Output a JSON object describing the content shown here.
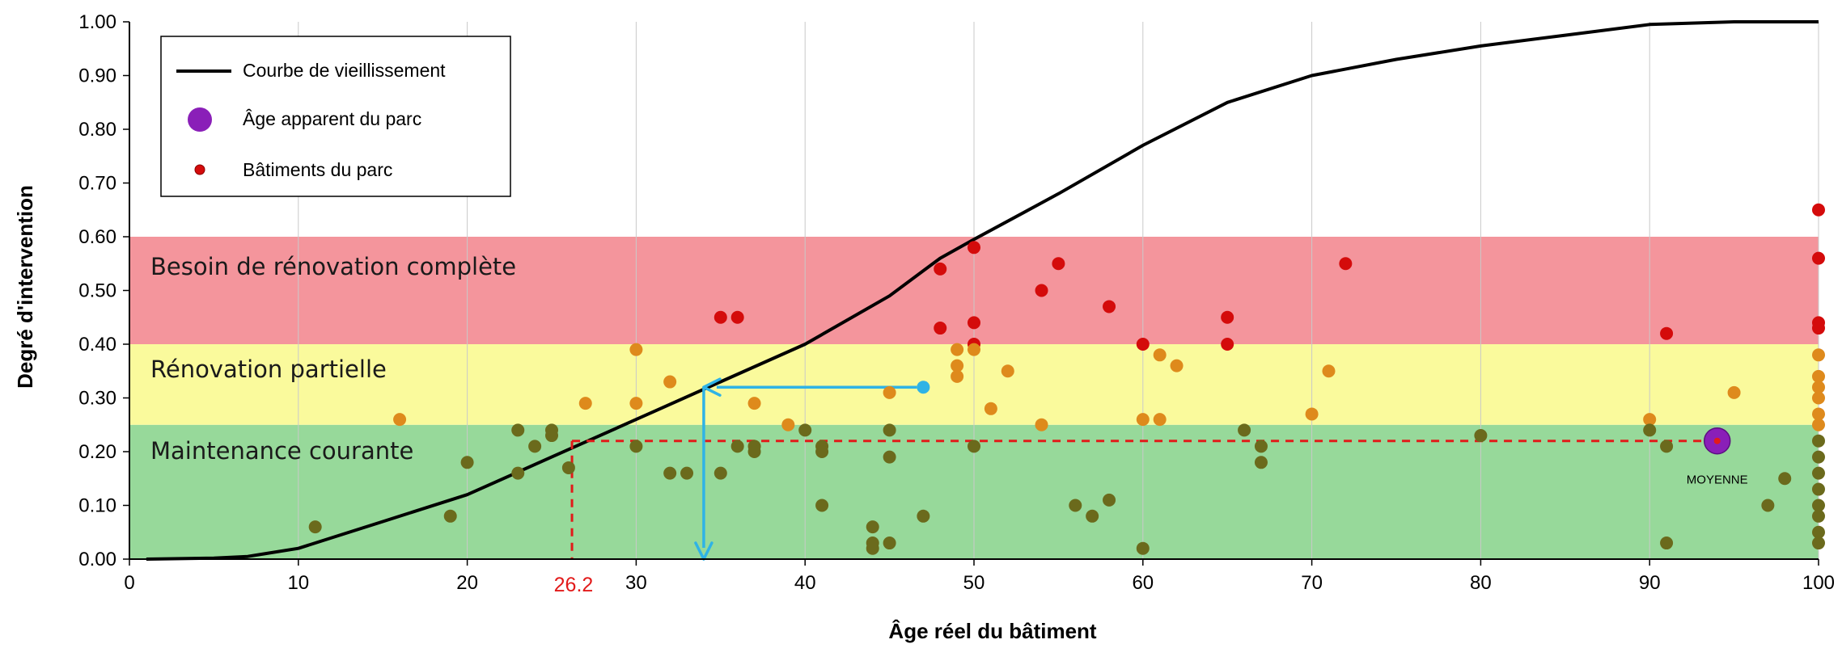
{
  "chart_data": {
    "type": "scatter",
    "xlabel": "Âge réel du bâtiment",
    "ylabel": "Degré d'intervention",
    "xlim": [
      0,
      100
    ],
    "ylim": [
      0,
      1
    ],
    "x_ticks": [
      "0",
      "10",
      "20",
      "30",
      "40",
      "50",
      "60",
      "70",
      "80",
      "90",
      "100"
    ],
    "y_ticks": [
      "0.00",
      "0.10",
      "0.20",
      "0.30",
      "0.40",
      "0.50",
      "0.60",
      "0.70",
      "0.80",
      "0.90",
      "1.00"
    ],
    "grid": "vertical",
    "legend_position": "top-left",
    "legend": {
      "curve": "Courbe de vieillissement",
      "apparent_age": "Âge apparent du parc",
      "buildings": "Bâtiments du parc"
    },
    "bands": [
      {
        "label": "Maintenance courante",
        "y_range": [
          0,
          0.25
        ],
        "color": "#97d99a"
      },
      {
        "label": "Rénovation partielle",
        "y_range": [
          0.25,
          0.4
        ],
        "color": "#fafa9c"
      },
      {
        "label": "Besoin de rénovation complète",
        "y_range": [
          0.4,
          0.6
        ],
        "color": "#f4959c"
      }
    ],
    "aging_curve": {
      "name": "Courbe de vieillissement",
      "x": [
        1,
        5,
        7,
        8,
        10,
        12,
        15,
        20,
        25,
        30,
        35,
        40,
        45,
        48,
        50,
        55,
        60,
        65,
        70,
        75,
        80,
        85,
        90,
        95,
        100
      ],
      "y": [
        0,
        0.002,
        0.005,
        0.01,
        0.02,
        0.04,
        0.07,
        0.12,
        0.19,
        0.26,
        0.33,
        0.4,
        0.49,
        0.56,
        0.595,
        0.68,
        0.77,
        0.85,
        0.9,
        0.93,
        0.955,
        0.975,
        0.995,
        1.0,
        1.0
      ]
    },
    "apparent_age": {
      "x": 94,
      "y": 0.22,
      "label": "MOYENNE"
    },
    "annotations": {
      "age_value": "26.2",
      "age_x": 26.2,
      "average_y": 0.22,
      "arrow_from": {
        "x": 47,
        "y": 0.32
      },
      "arrow_corner": {
        "x": 34,
        "y": 0.32
      },
      "arrow_to": {
        "x": 34,
        "y": 0.0
      }
    },
    "colors": {
      "green": "#6b6a1c",
      "orange": "#de8a1c",
      "red": "#d40b0b",
      "purple": "#8a1fb8",
      "arrow": "#2fb3e6",
      "dashed": "#e21a1a"
    },
    "buildings": [
      {
        "x": 11,
        "y": 0.06
      },
      {
        "x": 16,
        "y": 0.26
      },
      {
        "x": 19,
        "y": 0.08
      },
      {
        "x": 20,
        "y": 0.18
      },
      {
        "x": 23,
        "y": 0.24
      },
      {
        "x": 23,
        "y": 0.16
      },
      {
        "x": 24,
        "y": 0.21
      },
      {
        "x": 25,
        "y": 0.23
      },
      {
        "x": 25,
        "y": 0.24
      },
      {
        "x": 26,
        "y": 0.17
      },
      {
        "x": 27,
        "y": 0.29
      },
      {
        "x": 30,
        "y": 0.39
      },
      {
        "x": 30,
        "y": 0.29
      },
      {
        "x": 30,
        "y": 0.21
      },
      {
        "x": 32,
        "y": 0.33
      },
      {
        "x": 32,
        "y": 0.16
      },
      {
        "x": 33,
        "y": 0.16
      },
      {
        "x": 35,
        "y": 0.45
      },
      {
        "x": 35,
        "y": 0.16
      },
      {
        "x": 36,
        "y": 0.45
      },
      {
        "x": 36,
        "y": 0.21
      },
      {
        "x": 37,
        "y": 0.29
      },
      {
        "x": 37,
        "y": 0.21
      },
      {
        "x": 37,
        "y": 0.2
      },
      {
        "x": 39,
        "y": 0.25
      },
      {
        "x": 40,
        "y": 0.24
      },
      {
        "x": 41,
        "y": 0.21
      },
      {
        "x": 41,
        "y": 0.2
      },
      {
        "x": 41,
        "y": 0.1
      },
      {
        "x": 44,
        "y": 0.06
      },
      {
        "x": 44,
        "y": 0.03
      },
      {
        "x": 44,
        "y": 0.02
      },
      {
        "x": 45,
        "y": 0.31
      },
      {
        "x": 45,
        "y": 0.24
      },
      {
        "x": 45,
        "y": 0.19
      },
      {
        "x": 45,
        "y": 0.03
      },
      {
        "x": 47,
        "y": 0.08
      },
      {
        "x": 48,
        "y": 0.54
      },
      {
        "x": 48,
        "y": 0.43
      },
      {
        "x": 49,
        "y": 0.39
      },
      {
        "x": 49,
        "y": 0.36
      },
      {
        "x": 49,
        "y": 0.34
      },
      {
        "x": 50,
        "y": 0.58
      },
      {
        "x": 50,
        "y": 0.44
      },
      {
        "x": 50,
        "y": 0.4
      },
      {
        "x": 50,
        "y": 0.39
      },
      {
        "x": 50,
        "y": 0.21
      },
      {
        "x": 51,
        "y": 0.28
      },
      {
        "x": 52,
        "y": 0.35
      },
      {
        "x": 54,
        "y": 0.5
      },
      {
        "x": 54,
        "y": 0.25
      },
      {
        "x": 55,
        "y": 0.55
      },
      {
        "x": 56,
        "y": 0.1
      },
      {
        "x": 57,
        "y": 0.08
      },
      {
        "x": 58,
        "y": 0.47
      },
      {
        "x": 58,
        "y": 0.11
      },
      {
        "x": 60,
        "y": 0.4
      },
      {
        "x": 60,
        "y": 0.26
      },
      {
        "x": 60,
        "y": 0.02
      },
      {
        "x": 61,
        "y": 0.38
      },
      {
        "x": 61,
        "y": 0.26
      },
      {
        "x": 62,
        "y": 0.36
      },
      {
        "x": 65,
        "y": 0.45
      },
      {
        "x": 65,
        "y": 0.4
      },
      {
        "x": 66,
        "y": 0.24
      },
      {
        "x": 67,
        "y": 0.21
      },
      {
        "x": 67,
        "y": 0.18
      },
      {
        "x": 70,
        "y": 0.27
      },
      {
        "x": 71,
        "y": 0.35
      },
      {
        "x": 72,
        "y": 0.55
      },
      {
        "x": 80,
        "y": 0.23
      },
      {
        "x": 90,
        "y": 0.26
      },
      {
        "x": 90,
        "y": 0.24
      },
      {
        "x": 91,
        "y": 0.42
      },
      {
        "x": 91,
        "y": 0.21
      },
      {
        "x": 91,
        "y": 0.03
      },
      {
        "x": 95,
        "y": 0.31
      },
      {
        "x": 97,
        "y": 0.1
      },
      {
        "x": 98,
        "y": 0.15
      },
      {
        "x": 100,
        "y": 0.65
      },
      {
        "x": 100,
        "y": 0.56
      },
      {
        "x": 100,
        "y": 0.44
      },
      {
        "x": 100,
        "y": 0.43
      },
      {
        "x": 100,
        "y": 0.38
      },
      {
        "x": 100,
        "y": 0.34
      },
      {
        "x": 100,
        "y": 0.32
      },
      {
        "x": 100,
        "y": 0.3
      },
      {
        "x": 100,
        "y": 0.27
      },
      {
        "x": 100,
        "y": 0.25
      },
      {
        "x": 100,
        "y": 0.22
      },
      {
        "x": 100,
        "y": 0.19
      },
      {
        "x": 100,
        "y": 0.16
      },
      {
        "x": 100,
        "y": 0.13
      },
      {
        "x": 100,
        "y": 0.1
      },
      {
        "x": 100,
        "y": 0.08
      },
      {
        "x": 100,
        "y": 0.05
      },
      {
        "x": 100,
        "y": 0.03
      }
    ]
  }
}
